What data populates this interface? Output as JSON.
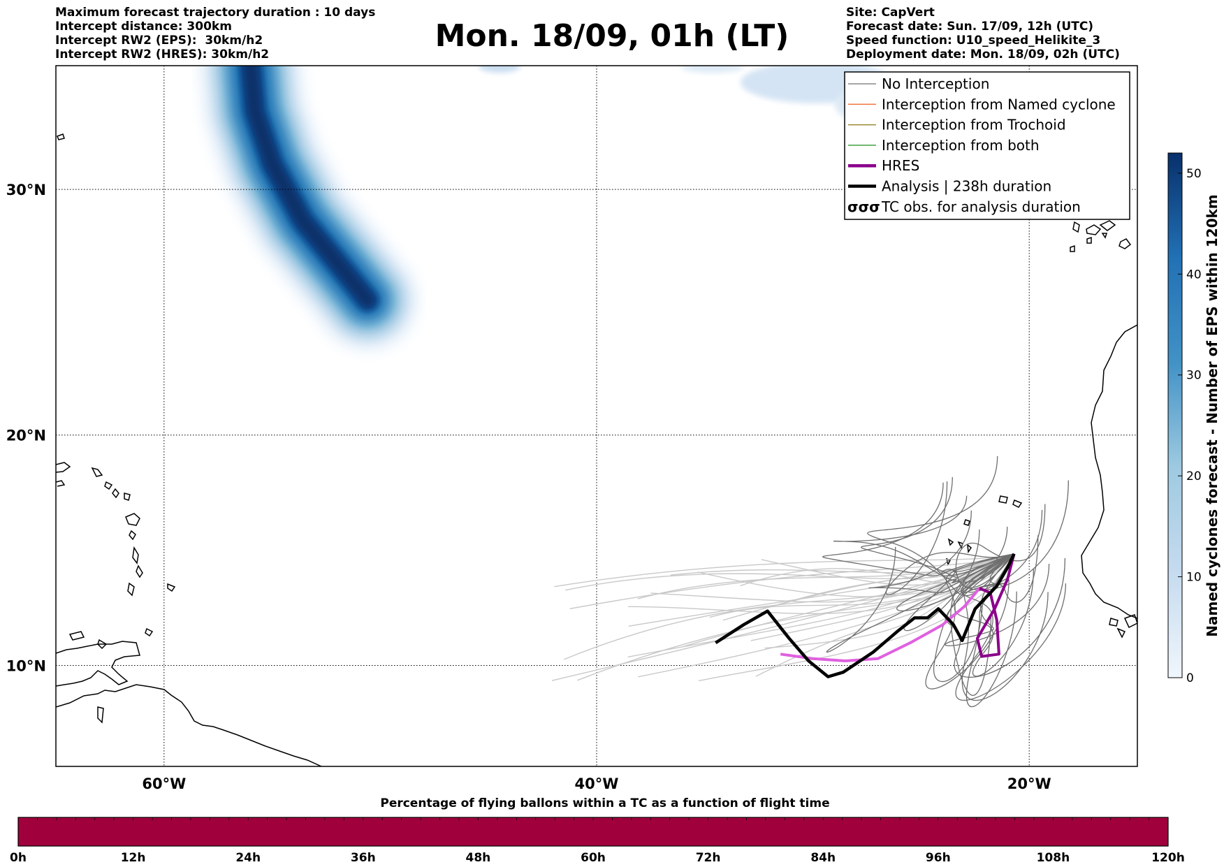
{
  "header_left": [
    "Maximum forecast trajectory duration : 10 days",
    "Intercept distance: 300km",
    "Intercept RW2 (EPS):  30km/h2",
    "Intercept RW2 (HRES): 30km/h2"
  ],
  "header_right": [
    "Site: CapVert",
    "Forecast date: Sun. 17/09, 12h (UTC)",
    "Speed function: U10_speed_Helikite_3",
    "Deployment date: Mon. 18/09, 02h (UTC)"
  ],
  "title": "Mon. 18/09, 01h (LT)",
  "map": {
    "lon_range": [
      -65,
      -15
    ],
    "lat_range": [
      5.5,
      34.7
    ],
    "lon_ticks": [
      {
        "value": -60,
        "label": "60°W"
      },
      {
        "value": -40,
        "label": "40°W"
      },
      {
        "value": -20,
        "label": "20°W"
      }
    ],
    "lat_ticks": [
      {
        "value": 30,
        "label": "30°N"
      },
      {
        "value": 20,
        "label": "20°N"
      },
      {
        "value": 10,
        "label": "10°N"
      }
    ],
    "grid": "dotted",
    "density_track": [
      {
        "lon": -56.0,
        "lat": 34.7,
        "w": 1.6
      },
      {
        "lon": -55.8,
        "lat": 33.0,
        "w": 1.8
      },
      {
        "lon": -55.0,
        "lat": 31.0,
        "w": 1.9
      },
      {
        "lon": -53.6,
        "lat": 28.8,
        "w": 1.9
      },
      {
        "lon": -51.8,
        "lat": 26.9,
        "w": 1.9
      },
      {
        "lon": -50.6,
        "lat": 25.6,
        "w": 1.5
      }
    ],
    "analysis_track": [
      {
        "lon": -34.5,
        "lat": 11.0
      },
      {
        "lon": -33.2,
        "lat": 11.8
      },
      {
        "lon": -32.1,
        "lat": 12.4
      },
      {
        "lon": -31.1,
        "lat": 11.2
      },
      {
        "lon": -30.2,
        "lat": 10.2
      },
      {
        "lon": -29.3,
        "lat": 9.5
      },
      {
        "lon": -28.6,
        "lat": 9.7
      },
      {
        "lon": -27.2,
        "lat": 10.6
      },
      {
        "lon": -26.1,
        "lat": 11.5
      },
      {
        "lon": -25.3,
        "lat": 12.1
      },
      {
        "lon": -24.7,
        "lat": 12.1
      },
      {
        "lon": -24.2,
        "lat": 12.5
      },
      {
        "lon": -23.5,
        "lat": 11.8
      },
      {
        "lon": -23.1,
        "lat": 11.1
      },
      {
        "lon": -22.5,
        "lat": 12.5
      },
      {
        "lon": -22.0,
        "lat": 13.0
      },
      {
        "lon": -21.5,
        "lat": 13.5
      },
      {
        "lon": -21.0,
        "lat": 14.3
      },
      {
        "lon": -20.7,
        "lat": 14.9
      }
    ],
    "hres_track": [
      {
        "lon": -31.5,
        "lat": 10.5
      },
      {
        "lon": -30.0,
        "lat": 10.3
      },
      {
        "lon": -28.5,
        "lat": 10.2
      },
      {
        "lon": -27.0,
        "lat": 10.3
      },
      {
        "lon": -25.5,
        "lat": 11.0
      },
      {
        "lon": -24.0,
        "lat": 11.8
      },
      {
        "lon": -23.0,
        "lat": 12.6
      },
      {
        "lon": -22.3,
        "lat": 13.4
      },
      {
        "lon": -21.8,
        "lat": 13.2
      },
      {
        "lon": -21.5,
        "lat": 12.0
      },
      {
        "lon": -21.4,
        "lat": 10.5
      },
      {
        "lon": -22.2,
        "lat": 10.4
      },
      {
        "lon": -22.4,
        "lat": 11.2
      },
      {
        "lon": -21.6,
        "lat": 12.5
      },
      {
        "lon": -21.0,
        "lat": 13.8
      },
      {
        "lon": -20.7,
        "lat": 14.9
      }
    ]
  },
  "legend": [
    {
      "label": "No Interception",
      "color": "#888888",
      "style": "thin"
    },
    {
      "label": "Interception from Named cyclone",
      "color": "#f07840",
      "style": "thin"
    },
    {
      "label": "Interception from Trochoid",
      "color": "#9a8a30",
      "style": "thin"
    },
    {
      "label": "Interception from both",
      "color": "#40a040",
      "style": "thin"
    },
    {
      "label": "HRES",
      "color": "#8b008b",
      "style": "thick"
    },
    {
      "label": "Analysis | 238h duration",
      "color": "#000000",
      "style": "thick"
    },
    {
      "label": "TC obs. for analysis duration",
      "color": "#000000",
      "style": "tc-symbol"
    }
  ],
  "colorbar": {
    "label": "Named cyclones forecast - Number of EPS within 120km",
    "min": 0,
    "max": 52,
    "ticks": [
      "0",
      "10",
      "20",
      "30",
      "40",
      "50"
    ],
    "tick_values": [
      0,
      10,
      20,
      30,
      40,
      50
    ],
    "color_low": "#eef4fb",
    "color_high": "#08306b"
  },
  "timeline": {
    "title": "Percentage of flying ballons within a TC as a function of flight time",
    "ticks": [
      "0h",
      "12h",
      "24h",
      "36h",
      "48h",
      "60h",
      "72h",
      "84h",
      "96h",
      "108h",
      "120h"
    ],
    "fill_color": "#a0003c",
    "percent": 100
  }
}
